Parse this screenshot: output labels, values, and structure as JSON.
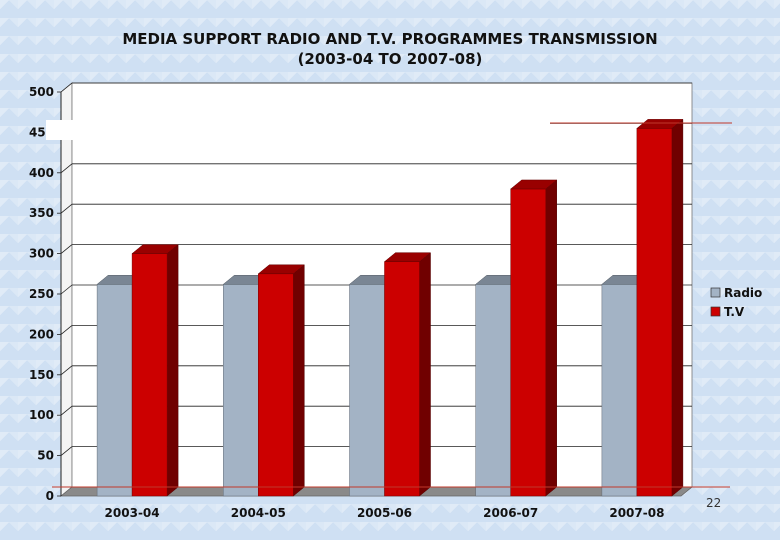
{
  "page_number": "22",
  "chart_data": {
    "type": "bar",
    "title": "MEDIA SUPPORT RADIO AND T.V. PROGRAMMES TRANSMISSION",
    "subtitle": "(2003-04 TO 2007-08)",
    "categories": [
      "2003-04",
      "2004-05",
      "2005-06",
      "2006-07",
      "2007-08"
    ],
    "series": [
      {
        "name": "Radio",
        "color": "#a3b3c5",
        "values": [
          262,
          262,
          262,
          262,
          262
        ]
      },
      {
        "name": "T.V",
        "color": "#cc0000",
        "values": [
          300,
          275,
          290,
          380,
          455
        ]
      }
    ],
    "ylim": [
      0,
      500
    ],
    "yticks": [
      0,
      50,
      100,
      150,
      200,
      250,
      300,
      350,
      400,
      450,
      500
    ],
    "grid": true,
    "legend": "right",
    "style": "3d"
  }
}
